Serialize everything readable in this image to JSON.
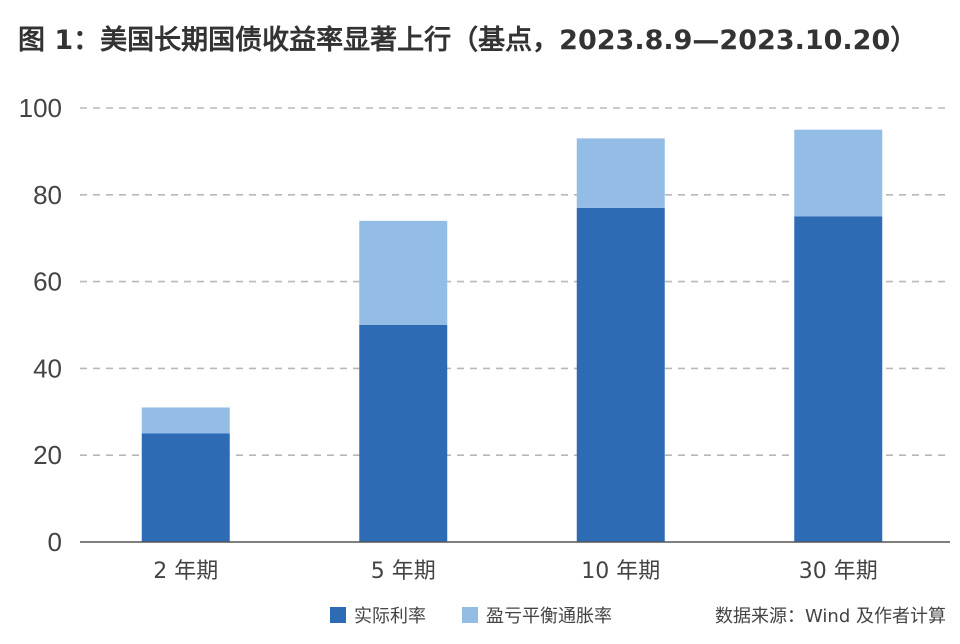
{
  "title": "图 1：美国长期国债收益率显著上行（基点，2023.8.9—2023.10.20）",
  "source": "数据来源：Wind 及作者计算",
  "colors": {
    "real_rate": "#2e6bb5",
    "breakeven": "#94bde6",
    "gridline": "#b8b8b8",
    "axis": "#555555"
  },
  "chart_data": {
    "type": "bar",
    "stacked": true,
    "title": "图 1：美国长期国债收益率显著上行（基点，2023.8.9—2023.10.20）",
    "xlabel": "",
    "ylabel": "",
    "categories": [
      "2 年期",
      "5 年期",
      "10 年期",
      "30 年期"
    ],
    "series": [
      {
        "name": "实际利率",
        "values": [
          25,
          50,
          77,
          75
        ]
      },
      {
        "name": "盈亏平衡通胀率",
        "values": [
          6,
          24,
          16,
          20
        ]
      }
    ],
    "ylim": [
      0,
      100
    ],
    "yticks": [
      0,
      20,
      40,
      60,
      80,
      100
    ],
    "grid": true,
    "legend": "bottom"
  }
}
